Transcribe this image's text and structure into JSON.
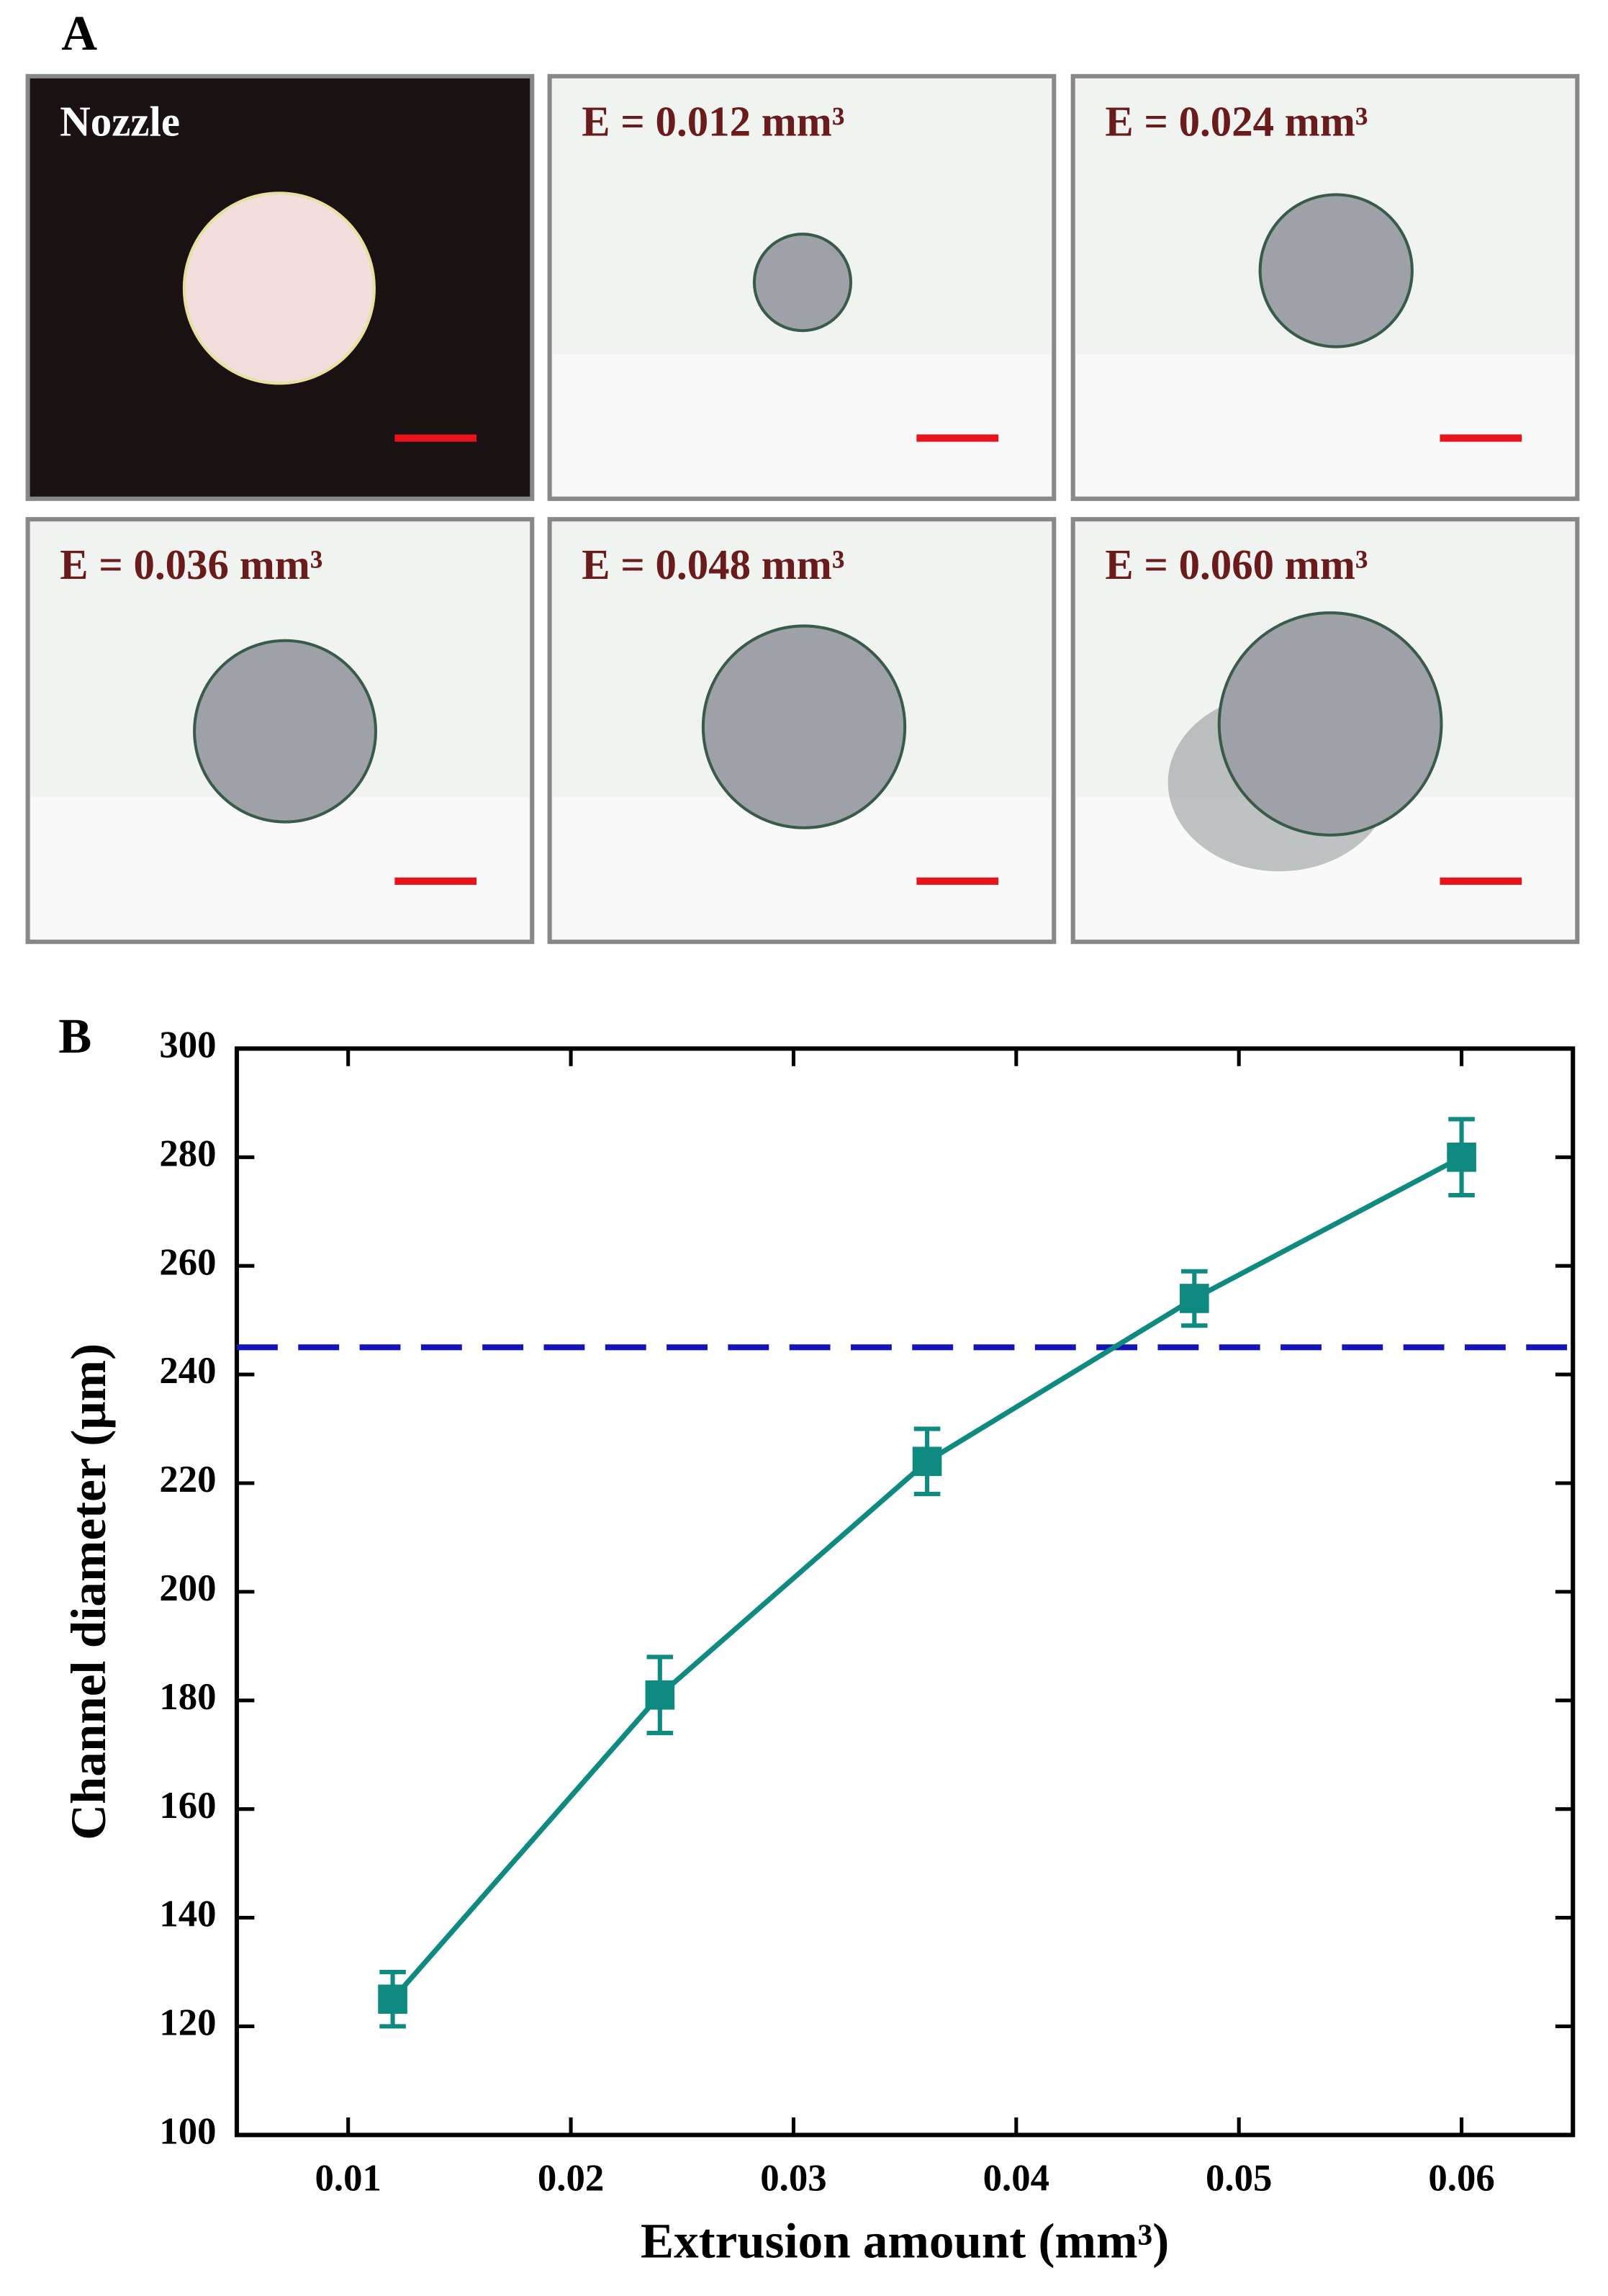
{
  "panel_a": {
    "label": "A",
    "images": [
      {
        "label": "Nozzle"
      },
      {
        "label": "E = 0.012 mm³"
      },
      {
        "label": "E = 0.024 mm³"
      },
      {
        "label": "E = 0.036 mm³"
      },
      {
        "label": "E = 0.048 mm³"
      },
      {
        "label": "E = 0.060 mm³"
      }
    ]
  },
  "chart_data": {
    "type": "line",
    "panel_label": "B",
    "x_label": "Extrusion amount (mm³)",
    "y_label": "Channel diameter (μm)",
    "x": [
      0.012,
      0.024,
      0.036,
      0.048,
      0.06
    ],
    "values": [
      125,
      181,
      224,
      254,
      280
    ],
    "errors": [
      5,
      7,
      6,
      5,
      7
    ],
    "color": "#0f8a80",
    "reference_line": 245,
    "reference_color": "#1414b8",
    "xlim": [
      0.005,
      0.065
    ],
    "xticks": [
      0.01,
      0.02,
      0.03,
      0.04,
      0.05,
      0.06
    ],
    "ylim": [
      100,
      300
    ],
    "yticks": [
      100,
      120,
      140,
      160,
      180,
      200,
      220,
      240,
      260,
      280,
      300
    ]
  }
}
